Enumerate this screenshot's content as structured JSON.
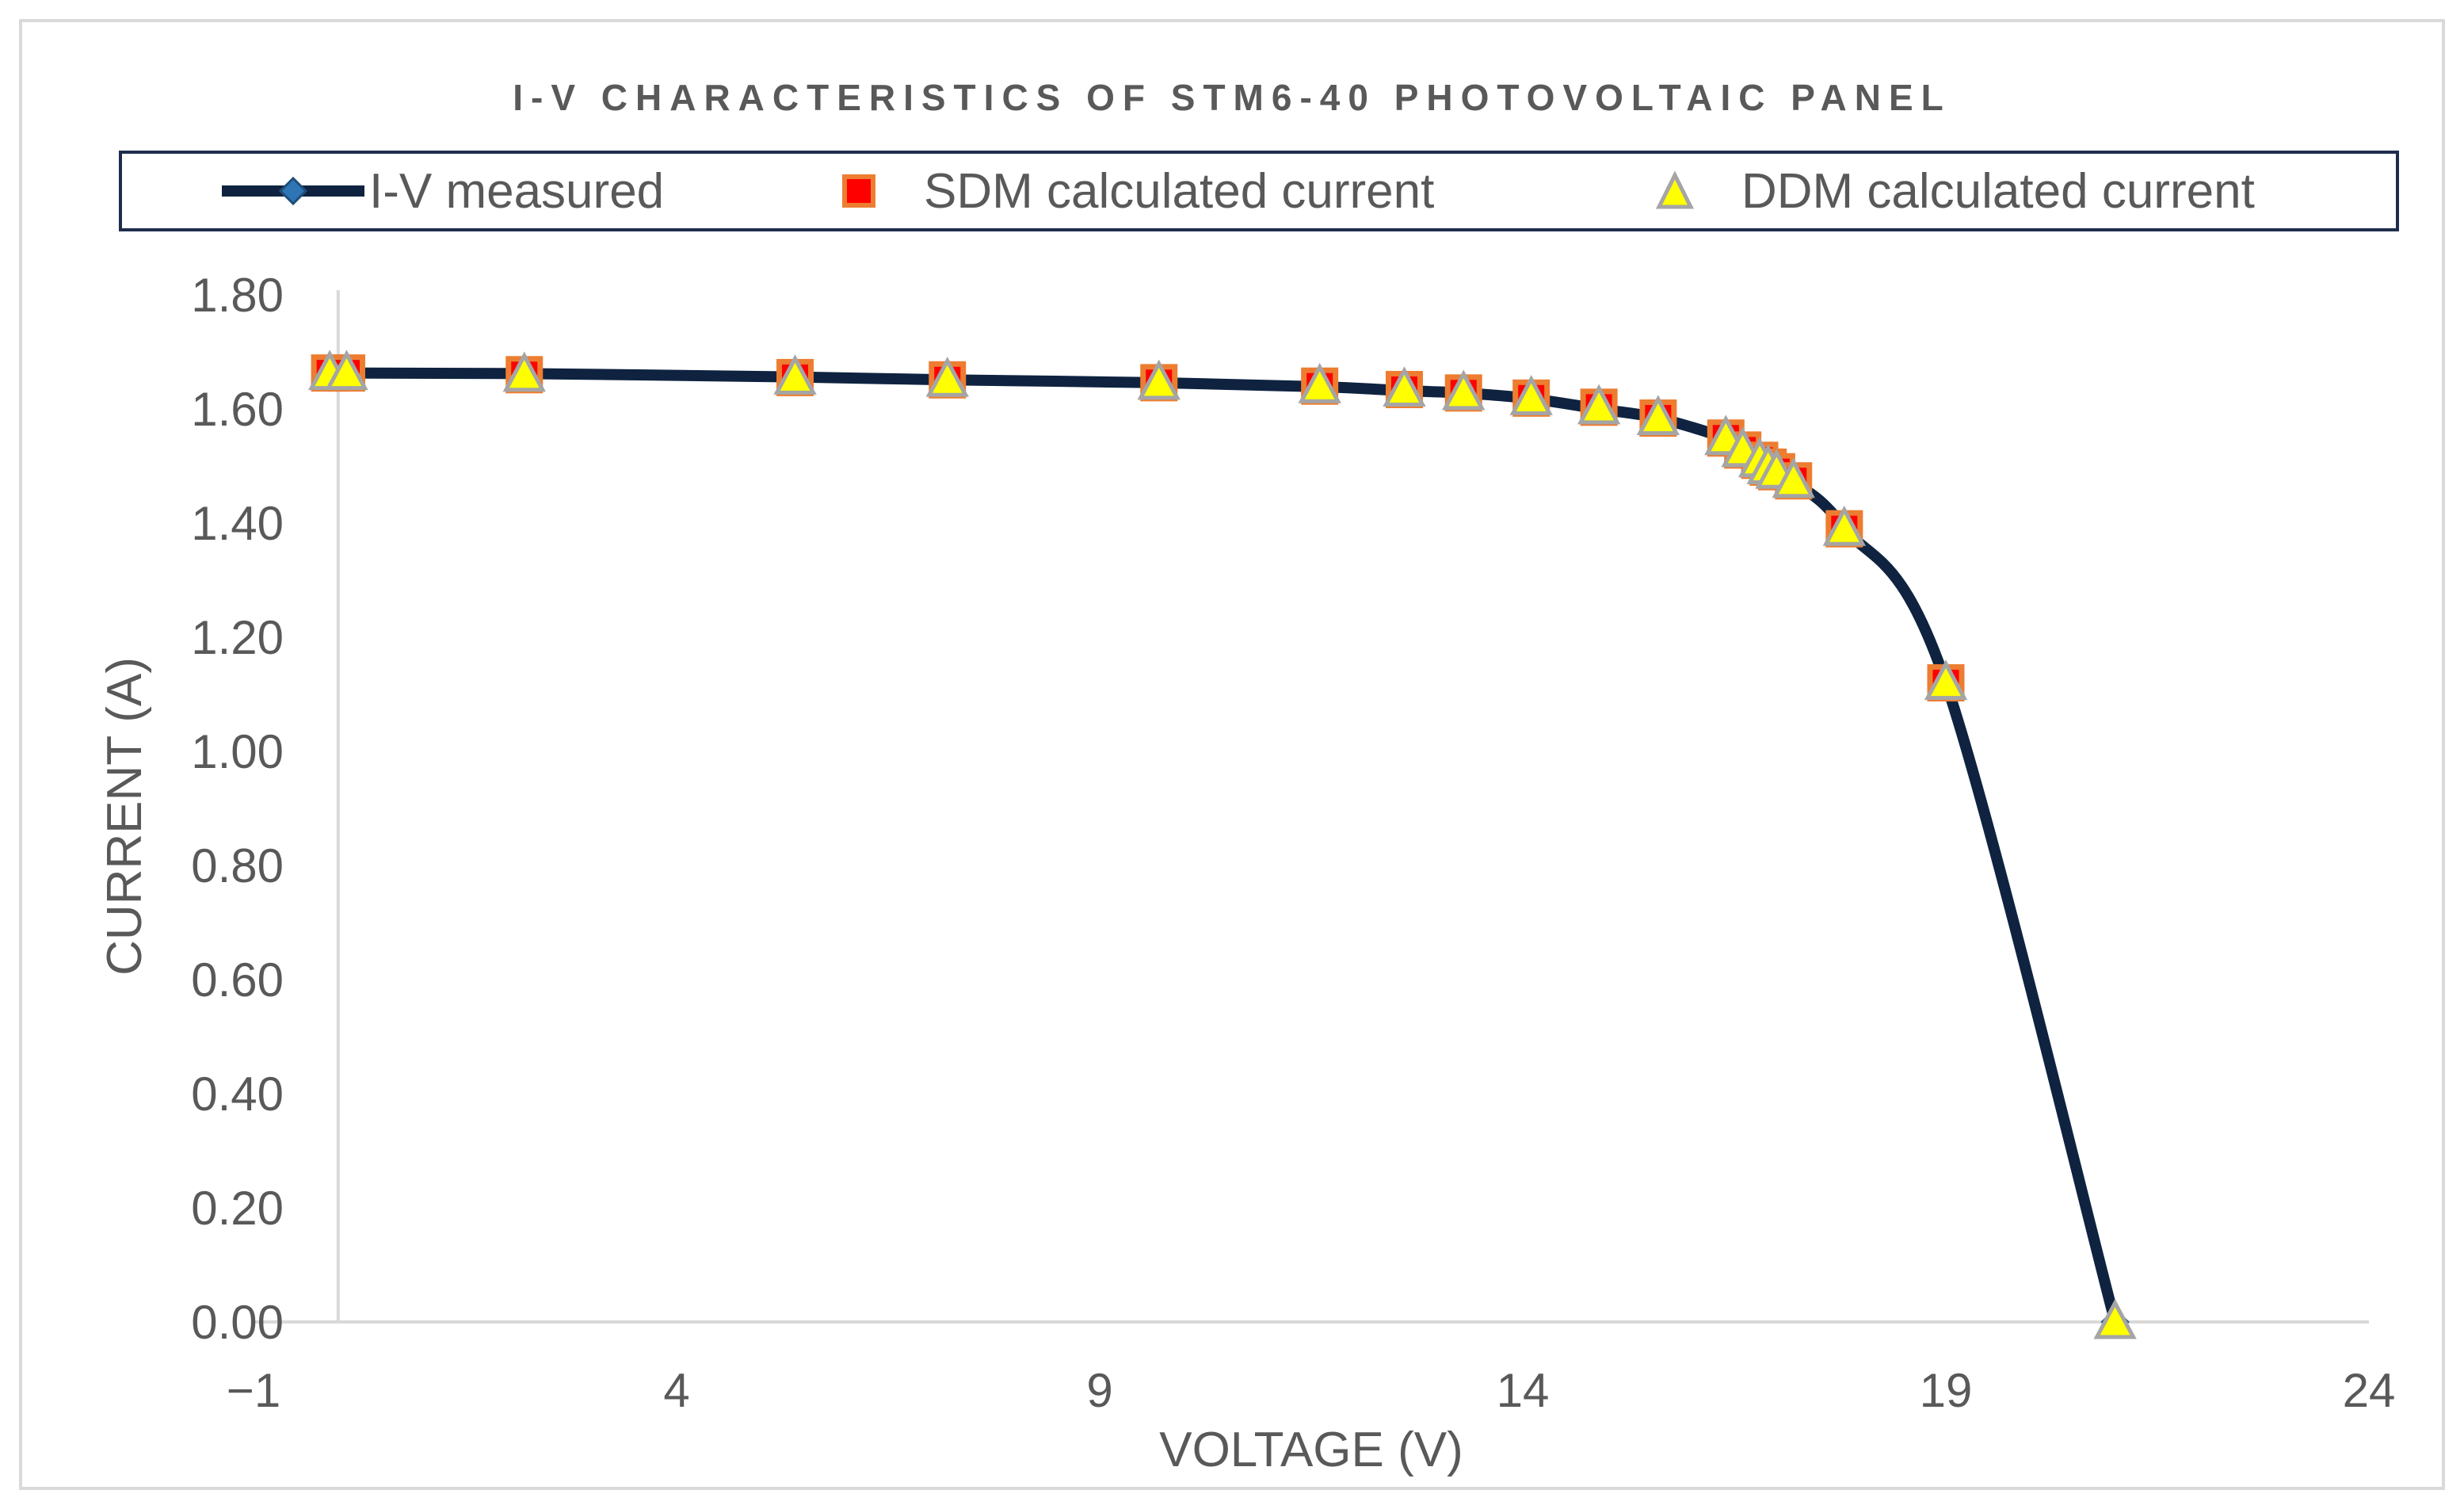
{
  "chart_data": {
    "type": "scatter",
    "title": "I-V CHARACTERISTICS OF STM6-40 PHOTOVOLTAIC PANEL",
    "xlabel": "VOLTAGE (V)",
    "ylabel": "CURRENT (A)",
    "xlim": [
      -1,
      24
    ],
    "ylim": [
      0,
      1.8
    ],
    "xticks": [
      -1,
      4,
      9,
      14,
      19,
      24
    ],
    "xtick_labels": [
      "−1",
      "4",
      "9",
      "14",
      "19",
      "24"
    ],
    "yticks": [
      0,
      0.2,
      0.4,
      0.6,
      0.8,
      1.0,
      1.2,
      1.4,
      1.6,
      1.8
    ],
    "ytick_labels": [
      "0.00",
      "0.20",
      "0.40",
      "0.60",
      "0.80",
      "1.00",
      "1.20",
      "1.40",
      "1.60",
      "1.80"
    ],
    "grid": false,
    "legend_position": "top",
    "series": [
      {
        "name": "I-V measured",
        "style": "smooth-line",
        "color": "#0f2340",
        "marker_color": "#2e75b6",
        "x": [
          0,
          2.2,
          5.4,
          7.2,
          9.7,
          11.6,
          12.6,
          13.3,
          14.1,
          14.9,
          15.6,
          16.4,
          16.6,
          16.8,
          16.9,
          17.0,
          17.2,
          17.8,
          19.0,
          21.0
        ],
        "y": [
          1.663,
          1.662,
          1.656,
          1.651,
          1.646,
          1.639,
          1.632,
          1.628,
          1.618,
          1.6,
          1.584,
          1.548,
          1.524,
          1.502,
          1.494,
          1.486,
          1.472,
          1.392,
          1.12,
          0.0
        ]
      },
      {
        "name": "SDM calculated current",
        "style": "marker-square",
        "color": "#ff0000",
        "stroke": "#ed7d31",
        "x": [
          -0.1,
          0.1,
          2.2,
          5.4,
          7.2,
          9.7,
          11.6,
          12.6,
          13.3,
          14.1,
          14.9,
          15.6,
          16.4,
          16.6,
          16.8,
          16.9,
          17.0,
          17.2,
          17.8,
          19.0
        ],
        "y": [
          1.663,
          1.663,
          1.66,
          1.655,
          1.651,
          1.646,
          1.64,
          1.634,
          1.628,
          1.619,
          1.603,
          1.584,
          1.549,
          1.528,
          1.51,
          1.498,
          1.49,
          1.474,
          1.39,
          1.12
        ]
      },
      {
        "name": "DDM calculated current",
        "style": "marker-triangle",
        "color": "#ffff00",
        "stroke": "#a5a5a5",
        "x": [
          -0.1,
          0.1,
          2.2,
          5.4,
          7.2,
          9.7,
          11.6,
          12.6,
          13.3,
          14.1,
          14.9,
          15.6,
          16.4,
          16.6,
          16.8,
          16.9,
          17.0,
          17.2,
          17.8,
          19.0,
          21.0
        ],
        "y": [
          1.663,
          1.663,
          1.66,
          1.655,
          1.651,
          1.646,
          1.64,
          1.634,
          1.628,
          1.619,
          1.603,
          1.584,
          1.549,
          1.528,
          1.51,
          1.498,
          1.49,
          1.474,
          1.39,
          1.12,
          0.0
        ]
      }
    ]
  },
  "legend": {
    "items": [
      {
        "label": "I-V measured",
        "symbol": "line-diamond-icon"
      },
      {
        "label": "SDM calculated current",
        "symbol": "square-icon"
      },
      {
        "label": "DDM calculated current",
        "symbol": "triangle-icon"
      }
    ]
  }
}
